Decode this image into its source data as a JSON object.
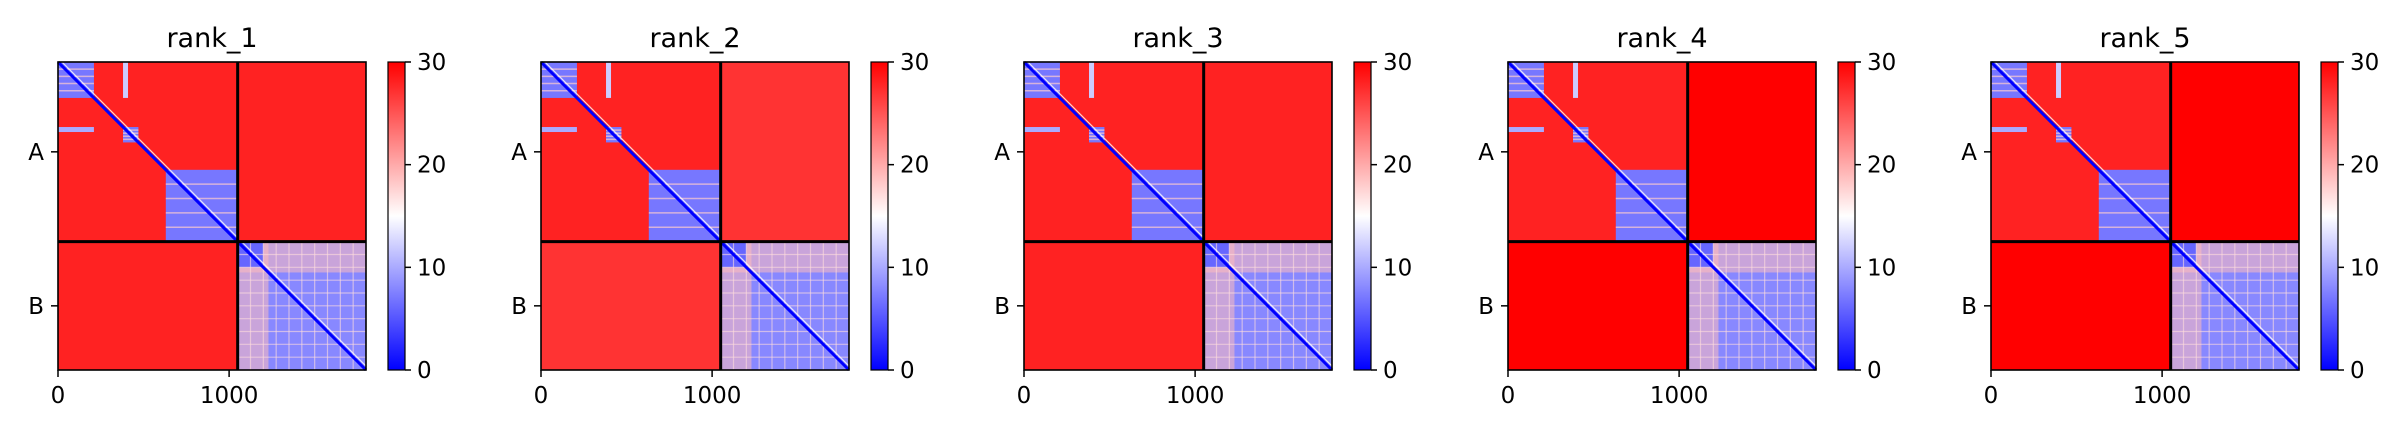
{
  "chart_data": {
    "type": "heatmap",
    "colormap": {
      "name": "bwr",
      "low": "#0000ff",
      "mid": "#ffffff",
      "high": "#ff0000"
    },
    "clim": [
      0,
      30
    ],
    "colorbar_ticks": [
      "0",
      "10",
      "20",
      "30"
    ],
    "xlim": [
      0,
      1800
    ],
    "x_ticks": [
      {
        "value": 0,
        "label": "0"
      },
      {
        "value": 1000,
        "label": "1000"
      }
    ],
    "chains": [
      {
        "label": "A",
        "start": 0,
        "end": 1050
      },
      {
        "label": "B",
        "start": 1050,
        "end": 1800
      }
    ],
    "panels": [
      {
        "title": "rank_1",
        "inter_chain_level": 28
      },
      {
        "title": "rank_2",
        "inter_chain_level": 27
      },
      {
        "title": "rank_3",
        "inter_chain_level": 28
      },
      {
        "title": "rank_4",
        "inter_chain_level": 30
      },
      {
        "title": "rank_5",
        "inter_chain_level": 30
      }
    ]
  }
}
